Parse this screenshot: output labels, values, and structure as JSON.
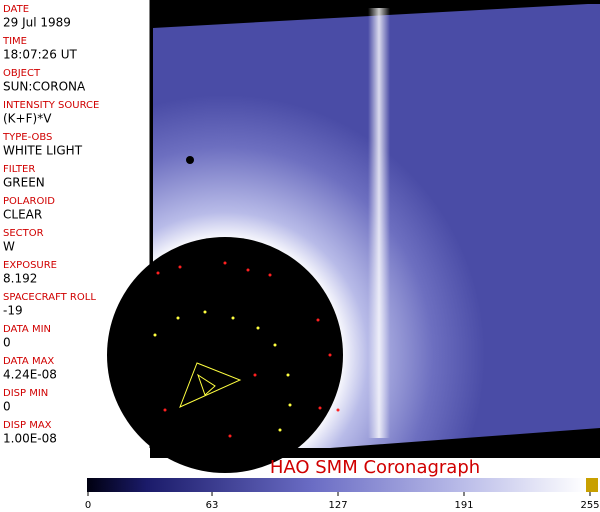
{
  "metadata": [
    {
      "label": "DATE",
      "value": "29 Jul 1989"
    },
    {
      "label": "TIME",
      "value": "18:07:26 UT"
    },
    {
      "label": "OBJECT",
      "value": "SUN:CORONA"
    },
    {
      "label": "INTENSITY SOURCE",
      "value": "(K+F)*V"
    },
    {
      "label": "TYPE-OBS",
      "value": "WHITE LIGHT"
    },
    {
      "label": "FILTER",
      "value": "GREEN"
    },
    {
      "label": "POLAROID",
      "value": "CLEAR"
    },
    {
      "label": "SECTOR",
      "value": "W"
    },
    {
      "label": "EXPOSURE",
      "value": "8.192"
    },
    {
      "label": "SPACECRAFT ROLL",
      "value": "-19"
    },
    {
      "label": "DATA MIN",
      "value": "0"
    },
    {
      "label": "DATA MAX",
      "value": "4.24E-08"
    },
    {
      "label": "DISP MIN",
      "value": "0"
    },
    {
      "label": "DISP MAX",
      "value": "1.00E-08"
    }
  ],
  "title": "HAO  SMM Coronagraph",
  "colorbar": {
    "range": [
      0,
      255
    ],
    "ticks": [
      0,
      63,
      127,
      191,
      255
    ]
  }
}
